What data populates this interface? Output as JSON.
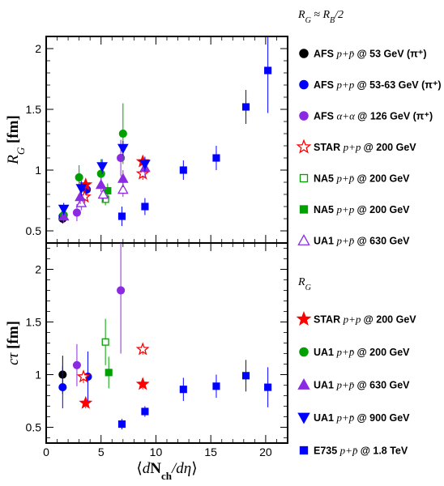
{
  "chart_data": {
    "type": "scatter",
    "x_axis": {
      "label": "⟨dN_ch/dη⟩",
      "range": [
        0,
        22
      ],
      "ticks": [
        "0",
        "5",
        "10",
        "15",
        "20"
      ]
    },
    "panels": [
      {
        "id": "top",
        "ylabel": "R_G [fm]",
        "ylim": [
          0.4,
          2.1
        ],
        "yticks": [
          "0.5",
          "1",
          "1.5",
          "2"
        ],
        "legend_header": "R_G ≈ R_B/2",
        "legend": [
          {
            "text": "AFS",
            "suffix": "p+p̄ @ 53 GeV (π⁺)",
            "marker": "circle",
            "color": "#000000",
            "filled": true
          },
          {
            "text": "AFS",
            "suffix": "p+p @ 53-63 GeV (π⁺)",
            "marker": "circle",
            "color": "#0000ff",
            "filled": true
          },
          {
            "text": "AFS",
            "suffix": "α+α @ 126 GeV (π⁺)",
            "marker": "circle",
            "color": "#8a2be2",
            "filled": true
          },
          {
            "text": "STAR",
            "suffix": "p+p @ 200 GeV",
            "marker": "star",
            "color": "#ff0000",
            "filled": false
          },
          {
            "text": "NA5",
            "suffix": "p+p̄ @ 200 GeV",
            "marker": "square",
            "color": "#00a000",
            "filled": false
          },
          {
            "text": "NA5",
            "suffix": "p+p @ 200 GeV",
            "marker": "square",
            "color": "#00a000",
            "filled": true
          },
          {
            "text": "UA1",
            "suffix": "p+p̄ @ 630 GeV",
            "marker": "triangle-up",
            "color": "#8a2be2",
            "filled": false
          }
        ],
        "series": [
          {
            "marker": "circle",
            "color": "#000000",
            "filled": true,
            "points": [
              [
                1.5,
                0.6,
                0.04
              ]
            ]
          },
          {
            "marker": "circle",
            "color": "#0000ff",
            "filled": true,
            "points": [
              [
                1.5,
                0.62,
                0.05
              ],
              [
                3.7,
                0.84,
                0.06
              ]
            ]
          },
          {
            "marker": "circle",
            "color": "#8a2be2",
            "filled": true,
            "points": [
              [
                2.8,
                0.65,
                0.07
              ],
              [
                6.8,
                1.1,
                0.15
              ]
            ]
          },
          {
            "marker": "star",
            "color": "#ff0000",
            "filled": false,
            "points": [
              [
                3.5,
                0.78,
                0.05
              ],
              [
                8.8,
                0.97,
                0.05
              ]
            ]
          },
          {
            "marker": "star",
            "color": "#ff0000",
            "filled": true,
            "points": [
              [
                3.6,
                0.88,
                0.05
              ],
              [
                8.8,
                1.07,
                0.05
              ]
            ]
          },
          {
            "marker": "square",
            "color": "#00a000",
            "filled": false,
            "points": [
              [
                5.4,
                0.76,
                0.05
              ]
            ]
          },
          {
            "marker": "square",
            "color": "#00a000",
            "filled": true,
            "points": [
              [
                5.6,
                0.83,
                0.06
              ]
            ]
          },
          {
            "marker": "circle",
            "color": "#00a000",
            "filled": true,
            "points": [
              [
                1.6,
                0.63,
                0.05
              ],
              [
                3.0,
                0.94,
                0.1
              ],
              [
                5.0,
                0.97,
                0.12
              ],
              [
                7.0,
                1.3,
                0.25
              ]
            ]
          },
          {
            "marker": "triangle-up",
            "color": "#8a2be2",
            "filled": false,
            "points": [
              [
                3.2,
                0.73,
                0.06
              ],
              [
                5.2,
                0.8,
                0.06
              ],
              [
                7.0,
                0.84,
                0.06
              ]
            ]
          },
          {
            "marker": "triangle-up",
            "color": "#8a2be2",
            "filled": true,
            "points": [
              [
                1.6,
                0.62,
                0.05
              ],
              [
                3.1,
                0.78,
                0.06
              ],
              [
                5.0,
                0.88,
                0.06
              ],
              [
                7.0,
                0.93,
                0.07
              ],
              [
                9.0,
                1.02,
                0.08
              ]
            ]
          },
          {
            "marker": "triangle-down",
            "color": "#0000ff",
            "filled": true,
            "points": [
              [
                1.6,
                0.68,
                0.05
              ],
              [
                3.2,
                0.85,
                0.06
              ],
              [
                5.1,
                1.03,
                0.06
              ],
              [
                7.0,
                1.18,
                0.06
              ],
              [
                9.0,
                1.05,
                0.06
              ]
            ]
          },
          {
            "marker": "square",
            "color": "#0000ff",
            "filled": true,
            "points": [
              [
                6.9,
                0.62,
                0.08
              ],
              [
                9.0,
                0.7,
                0.07
              ],
              [
                12.5,
                1.0,
                0.08
              ],
              [
                15.5,
                1.1,
                0.1
              ],
              [
                18.2,
                1.52,
                0.14
              ],
              [
                20.2,
                1.82,
                0.35
              ]
            ]
          }
        ]
      },
      {
        "id": "bottom",
        "ylabel": "cτ [fm]",
        "ylim": [
          0.35,
          2.25
        ],
        "yticks": [
          "0.5",
          "1",
          "1.5",
          "2"
        ],
        "legend_header": "R_G",
        "legend": [
          {
            "text": "STAR",
            "suffix": "p+p @ 200 GeV",
            "marker": "star",
            "color": "#ff0000",
            "filled": true
          },
          {
            "text": "UA1",
            "suffix": "p+p̄ @ 200 GeV",
            "marker": "circle",
            "color": "#00a000",
            "filled": true
          },
          {
            "text": "UA1",
            "suffix": "p+p̄ @ 630 GeV",
            "marker": "triangle-up",
            "color": "#8a2be2",
            "filled": true
          },
          {
            "text": "UA1",
            "suffix": "p+p̄ @ 900 GeV",
            "marker": "triangle-down",
            "color": "#0000ff",
            "filled": true
          },
          {
            "text": "E735",
            "suffix": "p+p̄ @ 1.8 TeV",
            "marker": "square",
            "color": "#0000ff",
            "filled": true
          }
        ],
        "series": [
          {
            "marker": "circle",
            "color": "#000000",
            "filled": true,
            "points": [
              [
                1.5,
                1.0,
                0.18
              ]
            ]
          },
          {
            "marker": "circle",
            "color": "#0000ff",
            "filled": true,
            "points": [
              [
                1.5,
                0.88,
                0.2
              ],
              [
                3.8,
                0.98,
                0.24
              ]
            ]
          },
          {
            "marker": "circle",
            "color": "#8a2be2",
            "filled": true,
            "points": [
              [
                2.8,
                1.09,
                0.2
              ],
              [
                6.8,
                1.8,
                0.6
              ]
            ]
          },
          {
            "marker": "star",
            "color": "#ff0000",
            "filled": false,
            "points": [
              [
                3.4,
                0.98,
                0.06
              ],
              [
                8.8,
                1.24,
                0.05
              ]
            ]
          },
          {
            "marker": "star",
            "color": "#ff0000",
            "filled": true,
            "points": [
              [
                3.6,
                0.73,
                0.05
              ],
              [
                8.8,
                0.91,
                0.05
              ]
            ]
          },
          {
            "marker": "square",
            "color": "#00a000",
            "filled": false,
            "points": [
              [
                5.4,
                1.31,
                0.22
              ]
            ]
          },
          {
            "marker": "square",
            "color": "#00a000",
            "filled": true,
            "points": [
              [
                5.7,
                1.02,
                0.15
              ]
            ]
          },
          {
            "marker": "square",
            "color": "#0000ff",
            "filled": true,
            "points": [
              [
                6.9,
                0.53,
                0.05
              ],
              [
                9.0,
                0.65,
                0.05
              ],
              [
                12.5,
                0.86,
                0.11
              ],
              [
                15.5,
                0.89,
                0.11
              ],
              [
                18.2,
                0.99,
                0.15
              ],
              [
                20.2,
                0.88,
                0.19
              ]
            ]
          }
        ]
      }
    ]
  }
}
